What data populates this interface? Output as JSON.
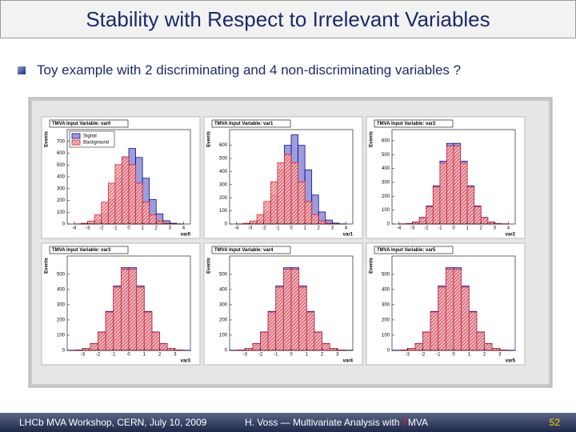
{
  "slide": {
    "title": "Stability with Respect to Irrelevant Variables",
    "bullet": "Toy example with 2 discriminating and 4 non-discriminating variables ?",
    "footer": {
      "left": "LHCb MVA Workshop, CERN, July 10, 2009",
      "center": "H. Voss — Multivariate Analysis with ",
      "center_t": "T",
      "center_rest": "MVA",
      "page": "52"
    }
  },
  "chart_data": [
    {
      "type": "histogram",
      "title": "TMVA Input Variable: var0",
      "x_label": "var0",
      "y_label": "Events",
      "legend": "top-left",
      "bins": [
        -4,
        -3.5,
        -3,
        -2.5,
        -2,
        -1.5,
        -1,
        -0.5,
        0,
        0.5,
        1,
        1.5,
        2,
        2.5,
        3,
        3.5,
        4
      ],
      "series": [
        {
          "name": "Signal",
          "color": "#0a0aa0",
          "values": [
            0,
            1,
            7,
            28,
            86,
            208,
            388,
            564,
            640,
            564,
            388,
            208,
            86,
            28,
            7,
            1
          ]
        },
        {
          "name": "Background",
          "color": "#e0202a",
          "values": [
            1,
            6,
            25,
            77,
            185,
            346,
            503,
            570,
            503,
            346,
            185,
            77,
            25,
            6,
            1,
            0
          ]
        }
      ],
      "xlim": [
        -4.5,
        4.5
      ],
      "xticks": [
        -4,
        -3,
        -2,
        -1,
        0,
        1,
        2,
        3,
        4
      ],
      "ylim": [
        0,
        800
      ],
      "yticks": [
        0,
        100,
        200,
        300,
        400,
        500,
        600,
        700
      ]
    },
    {
      "type": "histogram",
      "title": "TMVA Input Variable: var1",
      "x_label": "var1",
      "y_label": "Events",
      "bins": [
        -4,
        -3.5,
        -3,
        -2.5,
        -2,
        -1.5,
        -1,
        -0.5,
        0,
        0.5,
        1,
        1.5,
        2,
        2.5,
        3,
        3.5,
        4
      ],
      "series": [
        {
          "color": "#0a0aa0",
          "values": [
            0,
            1,
            7,
            30,
            92,
            221,
            413,
            600,
            680,
            600,
            413,
            221,
            92,
            30,
            7,
            1
          ]
        },
        {
          "color": "#e0202a",
          "values": [
            1,
            6,
            23,
            72,
            172,
            322,
            467,
            530,
            467,
            322,
            172,
            72,
            23,
            6,
            1,
            0
          ]
        }
      ],
      "xlim": [
        -4.5,
        4.5
      ],
      "xticks": [
        -4,
        -3,
        -2,
        -1,
        0,
        1,
        2,
        3,
        4
      ],
      "ylim": [
        0,
        720
      ],
      "yticks": [
        0,
        100,
        200,
        300,
        400,
        500,
        600
      ]
    },
    {
      "type": "histogram",
      "title": "TMVA Input Variable: var2",
      "x_label": "var2",
      "y_label": "Events",
      "bins": [
        -4,
        -3.5,
        -3,
        -2.5,
        -2,
        -1.5,
        -1,
        -0.5,
        0,
        0.5,
        1,
        1.5,
        2,
        2.5,
        3,
        3.5,
        4
      ],
      "series": [
        {
          "color": "#0a0aa0",
          "values": [
            1,
            3,
            14,
            48,
            130,
            275,
            453,
            581,
            581,
            453,
            275,
            130,
            48,
            14,
            3,
            1
          ]
        },
        {
          "color": "#e0202a",
          "values": [
            1,
            3,
            13,
            46,
            125,
            266,
            438,
            562,
            562,
            438,
            266,
            125,
            46,
            13,
            3,
            1
          ]
        }
      ],
      "xlim": [
        -4.5,
        4.5
      ],
      "xticks": [
        -4,
        -3,
        -2,
        -1,
        0,
        1,
        2,
        3,
        4
      ],
      "ylim": [
        0,
        680
      ],
      "yticks": [
        0,
        100,
        200,
        300,
        400,
        500,
        600
      ]
    },
    {
      "type": "histogram",
      "title": "TMVA Input Variable: var3",
      "x_label": "var3",
      "y_label": "Events",
      "bins": [
        -4,
        -3.5,
        -3,
        -2.5,
        -2,
        -1.5,
        -1,
        -0.5,
        0,
        0.5,
        1,
        1.5,
        2,
        2.5,
        3,
        3.5,
        4
      ],
      "series": [
        {
          "color": "#0a0aa0",
          "values": [
            1,
            3,
            13,
            45,
            121,
            256,
            423,
            543,
            543,
            423,
            256,
            121,
            45,
            13,
            3,
            1
          ]
        },
        {
          "color": "#e0202a",
          "values": [
            0,
            3,
            13,
            44,
            119,
            252,
            415,
            533,
            533,
            415,
            252,
            119,
            44,
            13,
            3,
            0
          ]
        }
      ],
      "xlim": [
        -4,
        4
      ],
      "xticks": [
        -3,
        -2,
        -1,
        0,
        1,
        2,
        3
      ],
      "ylim": [
        0,
        620
      ],
      "yticks": [
        0,
        100,
        200,
        300,
        400,
        500
      ]
    },
    {
      "type": "histogram",
      "title": "TMVA Input Variable: var4",
      "x_label": "var4",
      "y_label": "Events",
      "bins": [
        -4,
        -3.5,
        -3,
        -2.5,
        -2,
        -1.5,
        -1,
        -0.5,
        0,
        0.5,
        1,
        1.5,
        2,
        2.5,
        3,
        3.5,
        4
      ],
      "series": [
        {
          "color": "#0a0aa0",
          "values": [
            1,
            3,
            13,
            45,
            121,
            256,
            423,
            543,
            543,
            423,
            256,
            121,
            45,
            13,
            3,
            1
          ]
        },
        {
          "color": "#e0202a",
          "values": [
            0,
            3,
            13,
            44,
            119,
            252,
            415,
            533,
            533,
            415,
            252,
            119,
            44,
            13,
            3,
            0
          ]
        }
      ],
      "xlim": [
        -4,
        4
      ],
      "xticks": [
        -3,
        -2,
        -1,
        0,
        1,
        2,
        3
      ],
      "ylim": [
        0,
        620
      ],
      "yticks": [
        0,
        100,
        200,
        300,
        400,
        500
      ]
    },
    {
      "type": "histogram",
      "title": "TMVA Input Variable: var5",
      "x_label": "var5",
      "y_label": "Events",
      "bins": [
        -4,
        -3.5,
        -3,
        -2.5,
        -2,
        -1.5,
        -1,
        -0.5,
        0,
        0.5,
        1,
        1.5,
        2,
        2.5,
        3,
        3.5,
        4
      ],
      "series": [
        {
          "color": "#0a0aa0",
          "values": [
            1,
            3,
            13,
            45,
            121,
            256,
            423,
            543,
            543,
            423,
            256,
            121,
            45,
            13,
            3,
            1
          ]
        },
        {
          "color": "#e0202a",
          "values": [
            0,
            3,
            13,
            44,
            119,
            252,
            415,
            533,
            533,
            415,
            252,
            119,
            44,
            13,
            3,
            0
          ]
        }
      ],
      "xlim": [
        -4,
        4
      ],
      "xticks": [
        -3,
        -2,
        -1,
        0,
        1,
        2,
        3
      ],
      "ylim": [
        0,
        620
      ],
      "yticks": [
        0,
        100,
        200,
        300,
        400,
        500
      ]
    }
  ]
}
